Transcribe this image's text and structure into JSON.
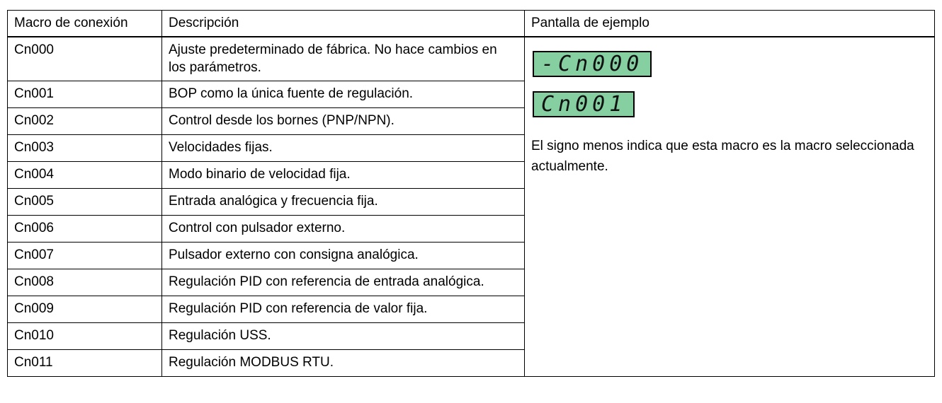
{
  "table": {
    "headers": [
      "Macro de conexión",
      "Descripción",
      "Pantalla de ejemplo"
    ],
    "rows": [
      [
        "Cn000",
        "Ajuste predeterminado de fábrica. No hace cambios en los parámetros."
      ],
      [
        "Cn001",
        "BOP como la única fuente de regulación."
      ],
      [
        "Cn002",
        "Control desde los bornes (PNP/NPN)."
      ],
      [
        "Cn003",
        "Velocidades fijas."
      ],
      [
        "Cn004",
        "Modo binario de velocidad fija."
      ],
      [
        "Cn005",
        "Entrada analógica y frecuencia fija."
      ],
      [
        "Cn006",
        "Control con pulsador externo."
      ],
      [
        "Cn007",
        "Pulsador externo con consigna analógica."
      ],
      [
        "Cn008",
        "Regulación PID con referencia de entrada analógica."
      ],
      [
        "Cn009",
        "Regulación PID con referencia de valor fija."
      ],
      [
        "Cn010",
        "Regulación USS."
      ],
      [
        "Cn011",
        "Regulación MODBUS RTU."
      ]
    ]
  },
  "example": {
    "displays": [
      "-Cn000",
      "Cn001"
    ],
    "note": "El signo menos indica que esta macro es la macro seleccionada actualmente."
  }
}
